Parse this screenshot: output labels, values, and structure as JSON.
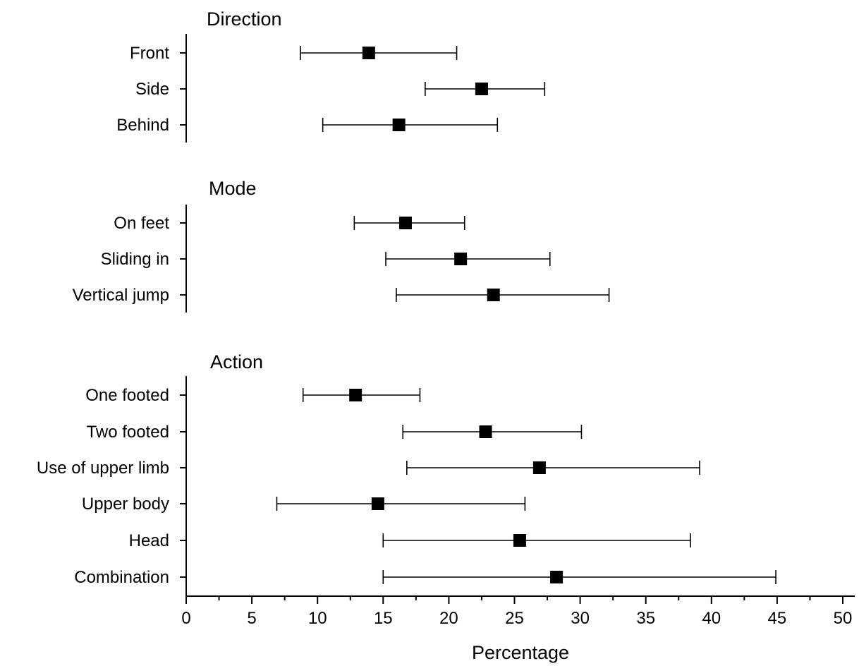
{
  "chart_data": {
    "type": "forest",
    "xlabel": "Percentage",
    "xlim": [
      0,
      50
    ],
    "xticks": [
      0,
      5,
      10,
      15,
      20,
      25,
      30,
      35,
      40,
      45,
      50
    ],
    "groups": [
      {
        "title": "Direction",
        "items": [
          {
            "label": "Front",
            "value": 13.9,
            "low": 8.7,
            "high": 20.6
          },
          {
            "label": "Side",
            "value": 22.5,
            "low": 18.2,
            "high": 27.3
          },
          {
            "label": "Behind",
            "value": 16.2,
            "low": 10.4,
            "high": 23.7
          }
        ]
      },
      {
        "title": "Mode",
        "items": [
          {
            "label": "On feet",
            "value": 16.7,
            "low": 12.8,
            "high": 21.2
          },
          {
            "label": "Sliding in",
            "value": 20.9,
            "low": 15.2,
            "high": 27.7
          },
          {
            "label": "Vertical jump",
            "value": 23.4,
            "low": 16.0,
            "high": 32.2
          }
        ]
      },
      {
        "title": "Action",
        "items": [
          {
            "label": "One footed",
            "value": 12.9,
            "low": 8.9,
            "high": 17.8
          },
          {
            "label": "Two footed",
            "value": 22.8,
            "low": 16.5,
            "high": 30.1
          },
          {
            "label": "Use of upper limb",
            "value": 26.9,
            "low": 16.8,
            "high": 39.1
          },
          {
            "label": "Upper body",
            "value": 14.6,
            "low": 6.9,
            "high": 25.8
          },
          {
            "label": "Head",
            "value": 25.4,
            "low": 15.0,
            "high": 38.4
          },
          {
            "label": "Combination",
            "value": 28.2,
            "low": 15.0,
            "high": 44.9
          }
        ]
      }
    ]
  }
}
